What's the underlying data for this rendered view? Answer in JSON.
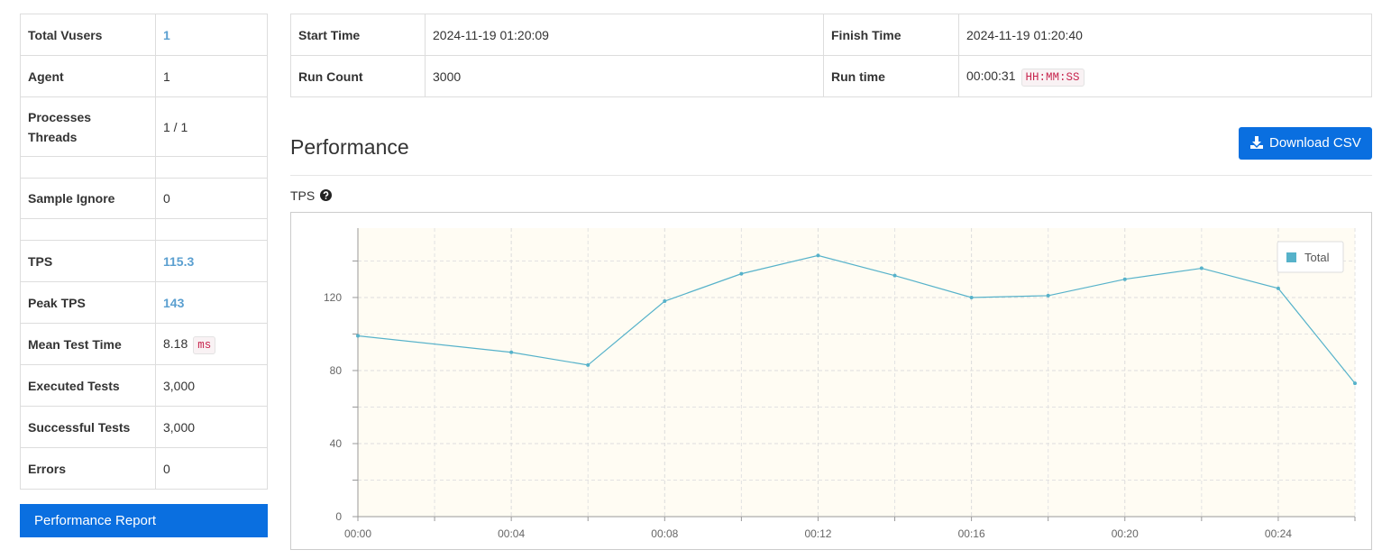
{
  "sidebar": {
    "rows": [
      {
        "label": "Total Vusers",
        "value": "1"
      },
      {
        "label": "Agent",
        "value": "1"
      },
      {
        "label_lines": [
          "Processes",
          "Threads"
        ],
        "value": "1 / 1"
      },
      {
        "label": "Sample Ignore",
        "value": "0"
      },
      {
        "label": "TPS",
        "value": "115.3"
      },
      {
        "label": "Peak TPS",
        "value": "143"
      },
      {
        "label": "Mean Test Time",
        "value": "8.18",
        "unit": "ms"
      },
      {
        "label": "Executed Tests",
        "value": "3,000"
      },
      {
        "label": "Successful Tests",
        "value": "3,000"
      },
      {
        "label": "Errors",
        "value": "0"
      }
    ],
    "button": "Performance Report"
  },
  "summary": {
    "rows": [
      [
        "Start Time",
        "2024-11-19 01:20:09",
        "Finish Time",
        "2024-11-19 01:20:40"
      ],
      [
        "Run Count",
        "3000",
        "Run time",
        "00:00:31"
      ]
    ],
    "run_time_format": "HH:MM:SS"
  },
  "section": {
    "title": "Performance",
    "button": "Download CSV"
  },
  "chart_data": {
    "type": "line",
    "title": "TPS",
    "x": [
      0,
      4,
      6,
      8,
      10,
      12,
      14,
      16,
      18,
      20,
      22,
      24,
      26
    ],
    "series": [
      {
        "name": "Total",
        "color": "#56b2ca",
        "values": [
          99,
          90,
          83,
          118,
          133,
          143,
          132,
          120,
          121,
          130,
          136,
          125,
          73
        ]
      }
    ],
    "xlim": [
      0,
      26
    ],
    "xticks": [
      {
        "value": 0,
        "label": "00:00"
      },
      {
        "value": 4,
        "label": "00:04"
      },
      {
        "value": 8,
        "label": "00:08"
      },
      {
        "value": 12,
        "label": "00:12"
      },
      {
        "value": 16,
        "label": "00:16"
      },
      {
        "value": 20,
        "label": "00:20"
      },
      {
        "value": 24,
        "label": "00:24"
      }
    ],
    "minor_xticks": [
      2,
      6,
      10,
      14,
      18,
      22,
      26
    ],
    "ylim": [
      0,
      158
    ],
    "yticks": [
      0,
      40,
      80,
      120
    ],
    "minor_yticks": [
      20,
      60,
      100,
      140
    ],
    "grid": true,
    "legend": "top-right"
  }
}
